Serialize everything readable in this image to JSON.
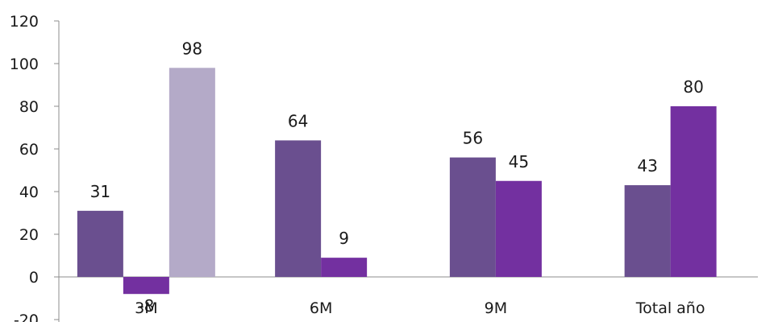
{
  "chart_data": {
    "type": "bar",
    "categories": [
      "3M",
      "6M",
      "9M",
      "Total año"
    ],
    "series": [
      {
        "values": [
          31,
          64,
          56,
          43
        ],
        "color": "#6a4f8f"
      },
      {
        "values": [
          -8,
          9,
          45,
          80
        ],
        "color": "#7330a0"
      },
      {
        "values": [
          98,
          null,
          null,
          null
        ],
        "color": "#b4aac8"
      }
    ],
    "data_labels": [
      [
        "31",
        "64",
        "56",
        "43"
      ],
      [
        "-8",
        "9",
        "45",
        "80"
      ],
      [
        "98",
        null,
        null,
        null
      ]
    ],
    "yticks": [
      -20,
      0,
      20,
      40,
      60,
      80,
      100,
      120
    ],
    "ylim": [
      -20,
      120
    ],
    "grid": false,
    "legend": "none",
    "title": "",
    "xlabel": "",
    "ylabel": ""
  }
}
